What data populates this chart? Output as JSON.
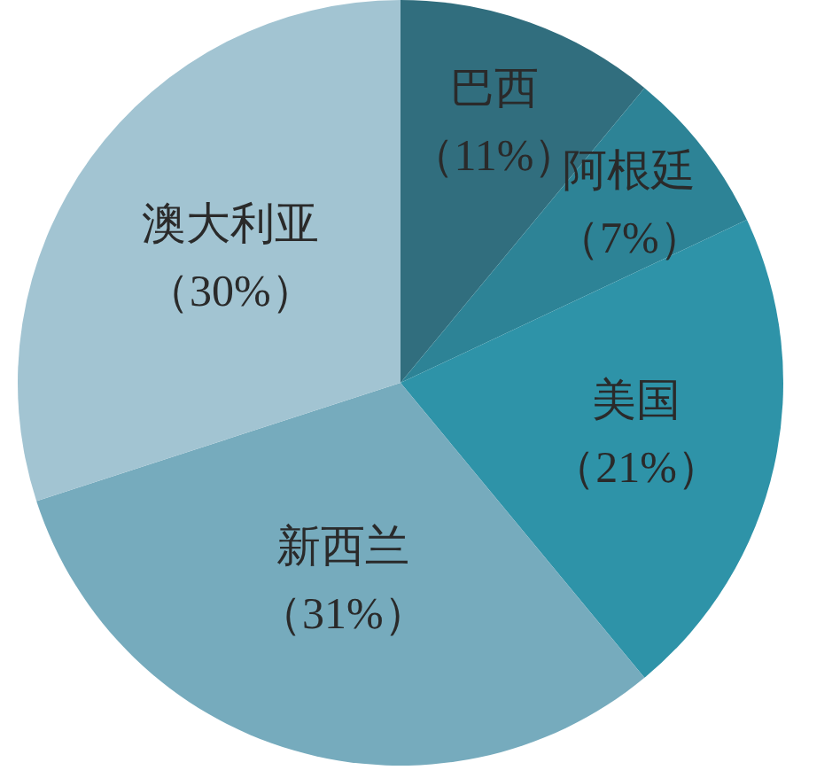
{
  "chart_data": {
    "type": "pie",
    "categories": [
      "巴西",
      "阿根廷",
      "美国",
      "新西兰",
      "澳大利亚"
    ],
    "values": [
      11,
      7,
      21,
      31,
      30
    ],
    "colors": [
      "#316e7e",
      "#2d8396",
      "#2e93a8",
      "#76abbd",
      "#a2c4d2"
    ],
    "value_labels": [
      "（11%）",
      "（7%）",
      "（21%）",
      "（31%）",
      "（30%）"
    ]
  }
}
